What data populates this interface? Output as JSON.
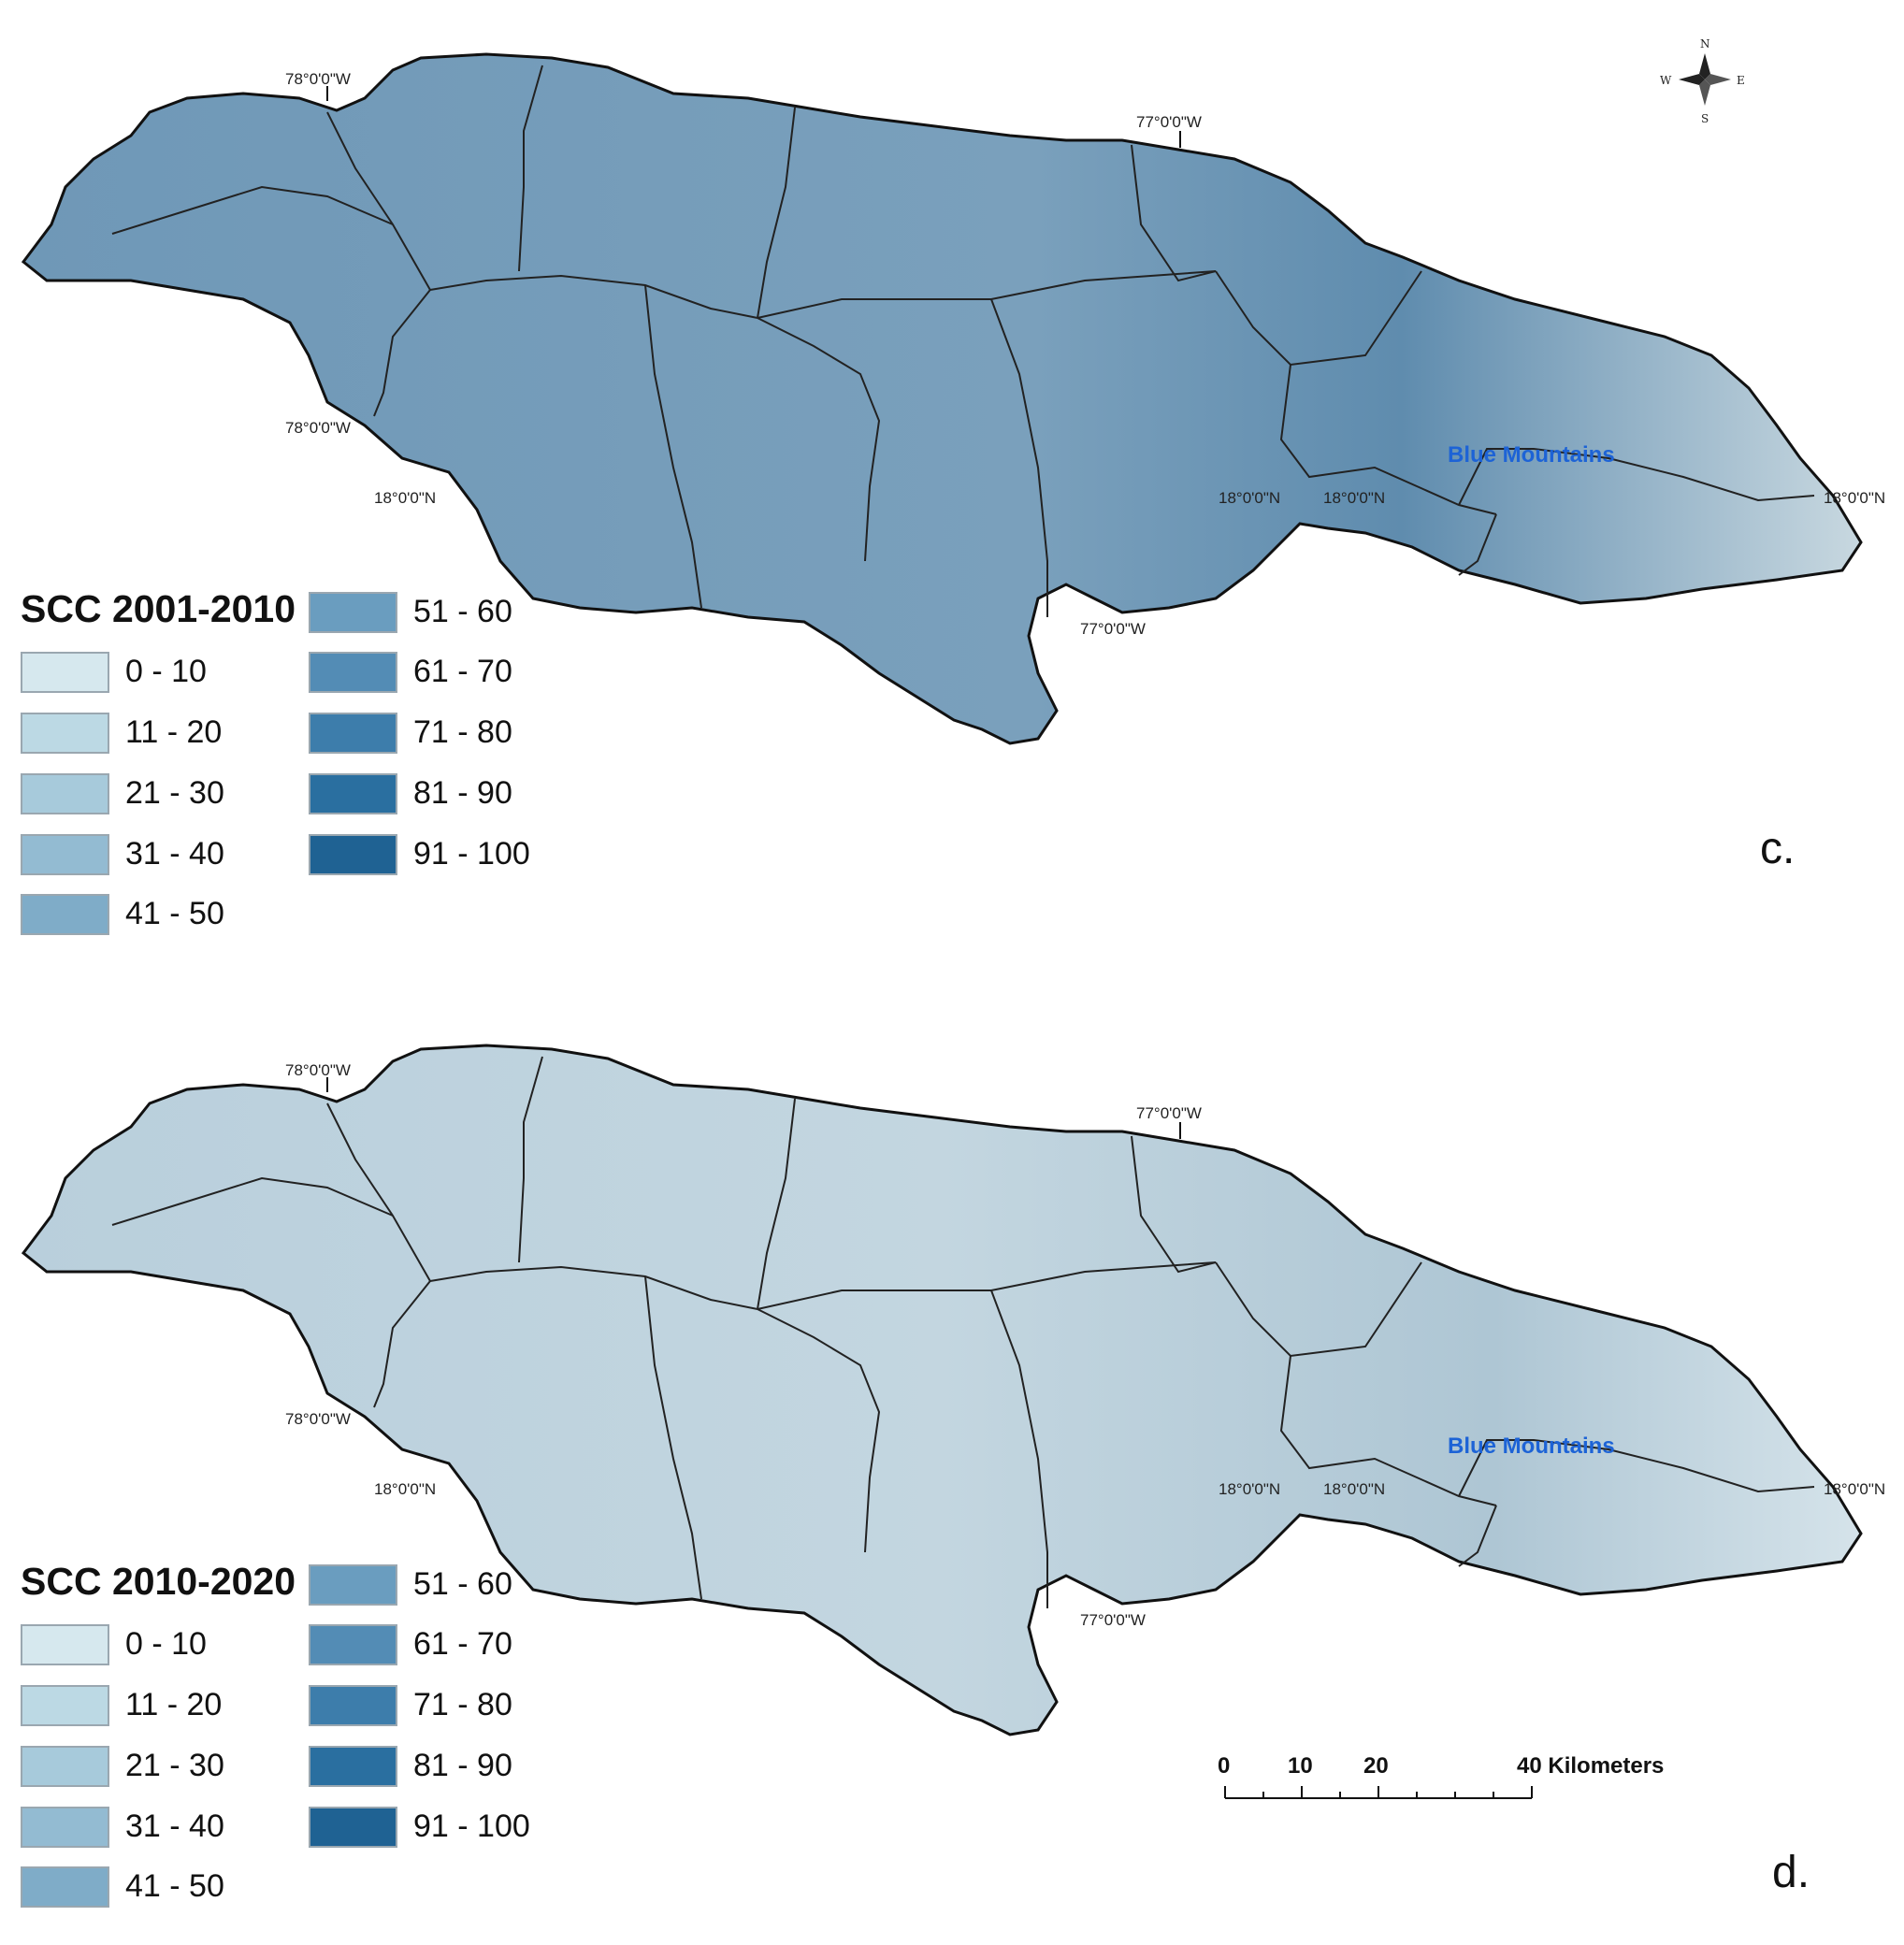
{
  "maps": [
    {
      "legend_title": "SCC 2001-2010",
      "panel_label": "c.",
      "tint": "#7fa3bd"
    },
    {
      "legend_title": "SCC 2010-2020",
      "panel_label": "d.",
      "tint": "#bfd3df"
    }
  ],
  "legend_classes": [
    "0 - 10",
    "11 - 20",
    "21 - 30",
    "31 - 40",
    "41 - 50",
    "51 - 60",
    "61 - 70",
    "71 - 80",
    "81 - 90",
    "91 - 100"
  ],
  "legend_colors": [
    "#d6e8ee",
    "#bcd9e4",
    "#a7cadb",
    "#93bbd2",
    "#7facc8",
    "#6a9dbf",
    "#538cb5",
    "#3d7dab",
    "#2a6fa0",
    "#1f6293"
  ],
  "labels": {
    "lon_78": "78°0'0\"W",
    "lon_77": "77°0'0\"W",
    "lat_18": "18°0'0\"N",
    "blue_mountains": "Blue Mountains"
  },
  "compass": {
    "n": "N",
    "s": "S",
    "e": "E",
    "w": "W"
  },
  "scale_bar": {
    "ticks": [
      "0",
      "10",
      "20",
      "40 Kilometers"
    ]
  }
}
